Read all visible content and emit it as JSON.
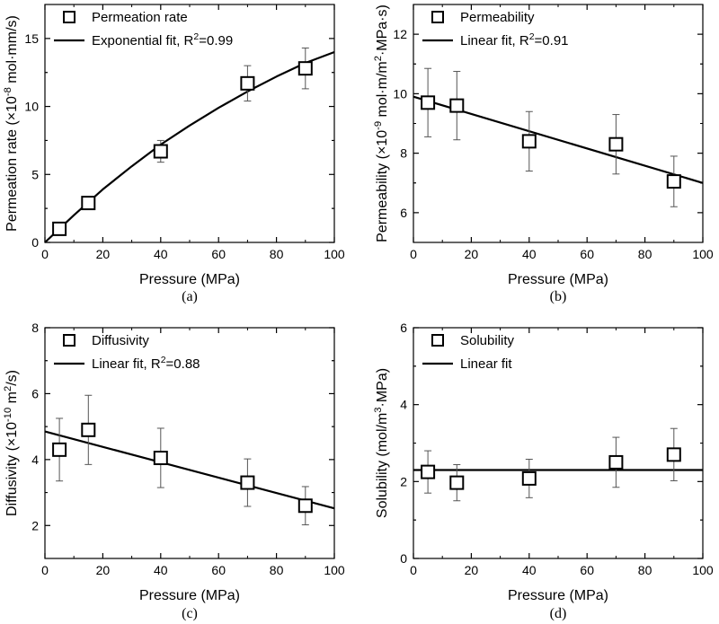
{
  "figure": {
    "panels": [
      "(a)",
      "(b)",
      "(c)",
      "(d)"
    ]
  },
  "chart_data": [
    {
      "panel_label": "(a)",
      "type": "scatter",
      "xlabel": "Pressure (MPa)",
      "ylabel": "Permeation rate (×10⁻⁸ mol·mm/s)",
      "xlim": [
        0,
        100
      ],
      "ylim": [
        0,
        17.5
      ],
      "xticks": [
        0,
        20,
        40,
        60,
        80,
        100
      ],
      "yticks": [
        0,
        5,
        10,
        15
      ],
      "legend_position": "top-left",
      "series": [
        {
          "name": "Permeation rate",
          "marker": "open-square",
          "x": [
            5,
            15,
            40,
            70,
            90
          ],
          "y": [
            1.0,
            2.9,
            6.7,
            11.7,
            12.8
          ],
          "yerr": [
            0.3,
            0.3,
            0.8,
            1.3,
            1.5
          ]
        }
      ],
      "fit": {
        "name": "Exponential fit, R²=0.99",
        "kind": "exponential",
        "x": [
          0,
          10,
          20,
          30,
          40,
          50,
          60,
          70,
          80,
          90,
          100
        ],
        "y": [
          0.0,
          2.0,
          3.9,
          5.6,
          7.2,
          8.6,
          9.9,
          11.1,
          12.2,
          13.2,
          14.0
        ]
      }
    },
    {
      "panel_label": "(b)",
      "type": "scatter",
      "xlabel": "Pressure (MPa)",
      "ylabel": "Permeability (×10⁻⁹ mol·m/m²·MPa·s)",
      "xlim": [
        0,
        100
      ],
      "ylim": [
        5,
        13
      ],
      "xticks": [
        0,
        20,
        40,
        60,
        80,
        100
      ],
      "yticks": [
        6,
        8,
        10,
        12
      ],
      "legend_position": "top-left",
      "series": [
        {
          "name": "Permeability",
          "marker": "open-square",
          "x": [
            5,
            15,
            40,
            70,
            90
          ],
          "y": [
            9.7,
            9.6,
            8.4,
            8.3,
            7.05
          ],
          "yerr": [
            1.15,
            1.15,
            1.0,
            1.0,
            0.85
          ]
        }
      ],
      "fit": {
        "name": "Linear fit, R²=0.91",
        "kind": "linear",
        "x": [
          0,
          100
        ],
        "y": [
          9.9,
          7.0
        ]
      }
    },
    {
      "panel_label": "(c)",
      "type": "scatter",
      "xlabel": "Pressure (MPa)",
      "ylabel": "Diffusivity (×10⁻¹⁰ m²/s)",
      "xlim": [
        0,
        100
      ],
      "ylim": [
        1,
        8
      ],
      "xticks": [
        0,
        20,
        40,
        60,
        80,
        100
      ],
      "yticks": [
        2,
        4,
        6,
        8
      ],
      "legend_position": "top-left",
      "series": [
        {
          "name": "Diffusivity",
          "marker": "open-square",
          "x": [
            5,
            15,
            40,
            70,
            90
          ],
          "y": [
            4.3,
            4.9,
            4.05,
            3.3,
            2.6
          ],
          "yerr": [
            0.95,
            1.05,
            0.9,
            0.72,
            0.58
          ]
        }
      ],
      "fit": {
        "name": "Linear fit, R²=0.88",
        "kind": "linear",
        "x": [
          0,
          100
        ],
        "y": [
          4.85,
          2.52
        ]
      }
    },
    {
      "panel_label": "(d)",
      "type": "scatter",
      "xlabel": "Pressure (MPa)",
      "ylabel": "Solubility (mol/m³·MPa)",
      "xlim": [
        0,
        100
      ],
      "ylim": [
        0,
        6
      ],
      "xticks": [
        0,
        20,
        40,
        60,
        80,
        100
      ],
      "yticks": [
        0,
        2,
        4,
        6
      ],
      "legend_position": "top-left",
      "series": [
        {
          "name": "Solubility",
          "marker": "open-square",
          "x": [
            5,
            15,
            40,
            70,
            90
          ],
          "y": [
            2.25,
            1.97,
            2.08,
            2.5,
            2.7
          ],
          "yerr": [
            0.55,
            0.47,
            0.5,
            0.65,
            0.68
          ]
        }
      ],
      "fit": {
        "name": "Linear fit",
        "kind": "linear",
        "x": [
          0,
          100
        ],
        "y": [
          2.3,
          2.3
        ]
      }
    }
  ]
}
